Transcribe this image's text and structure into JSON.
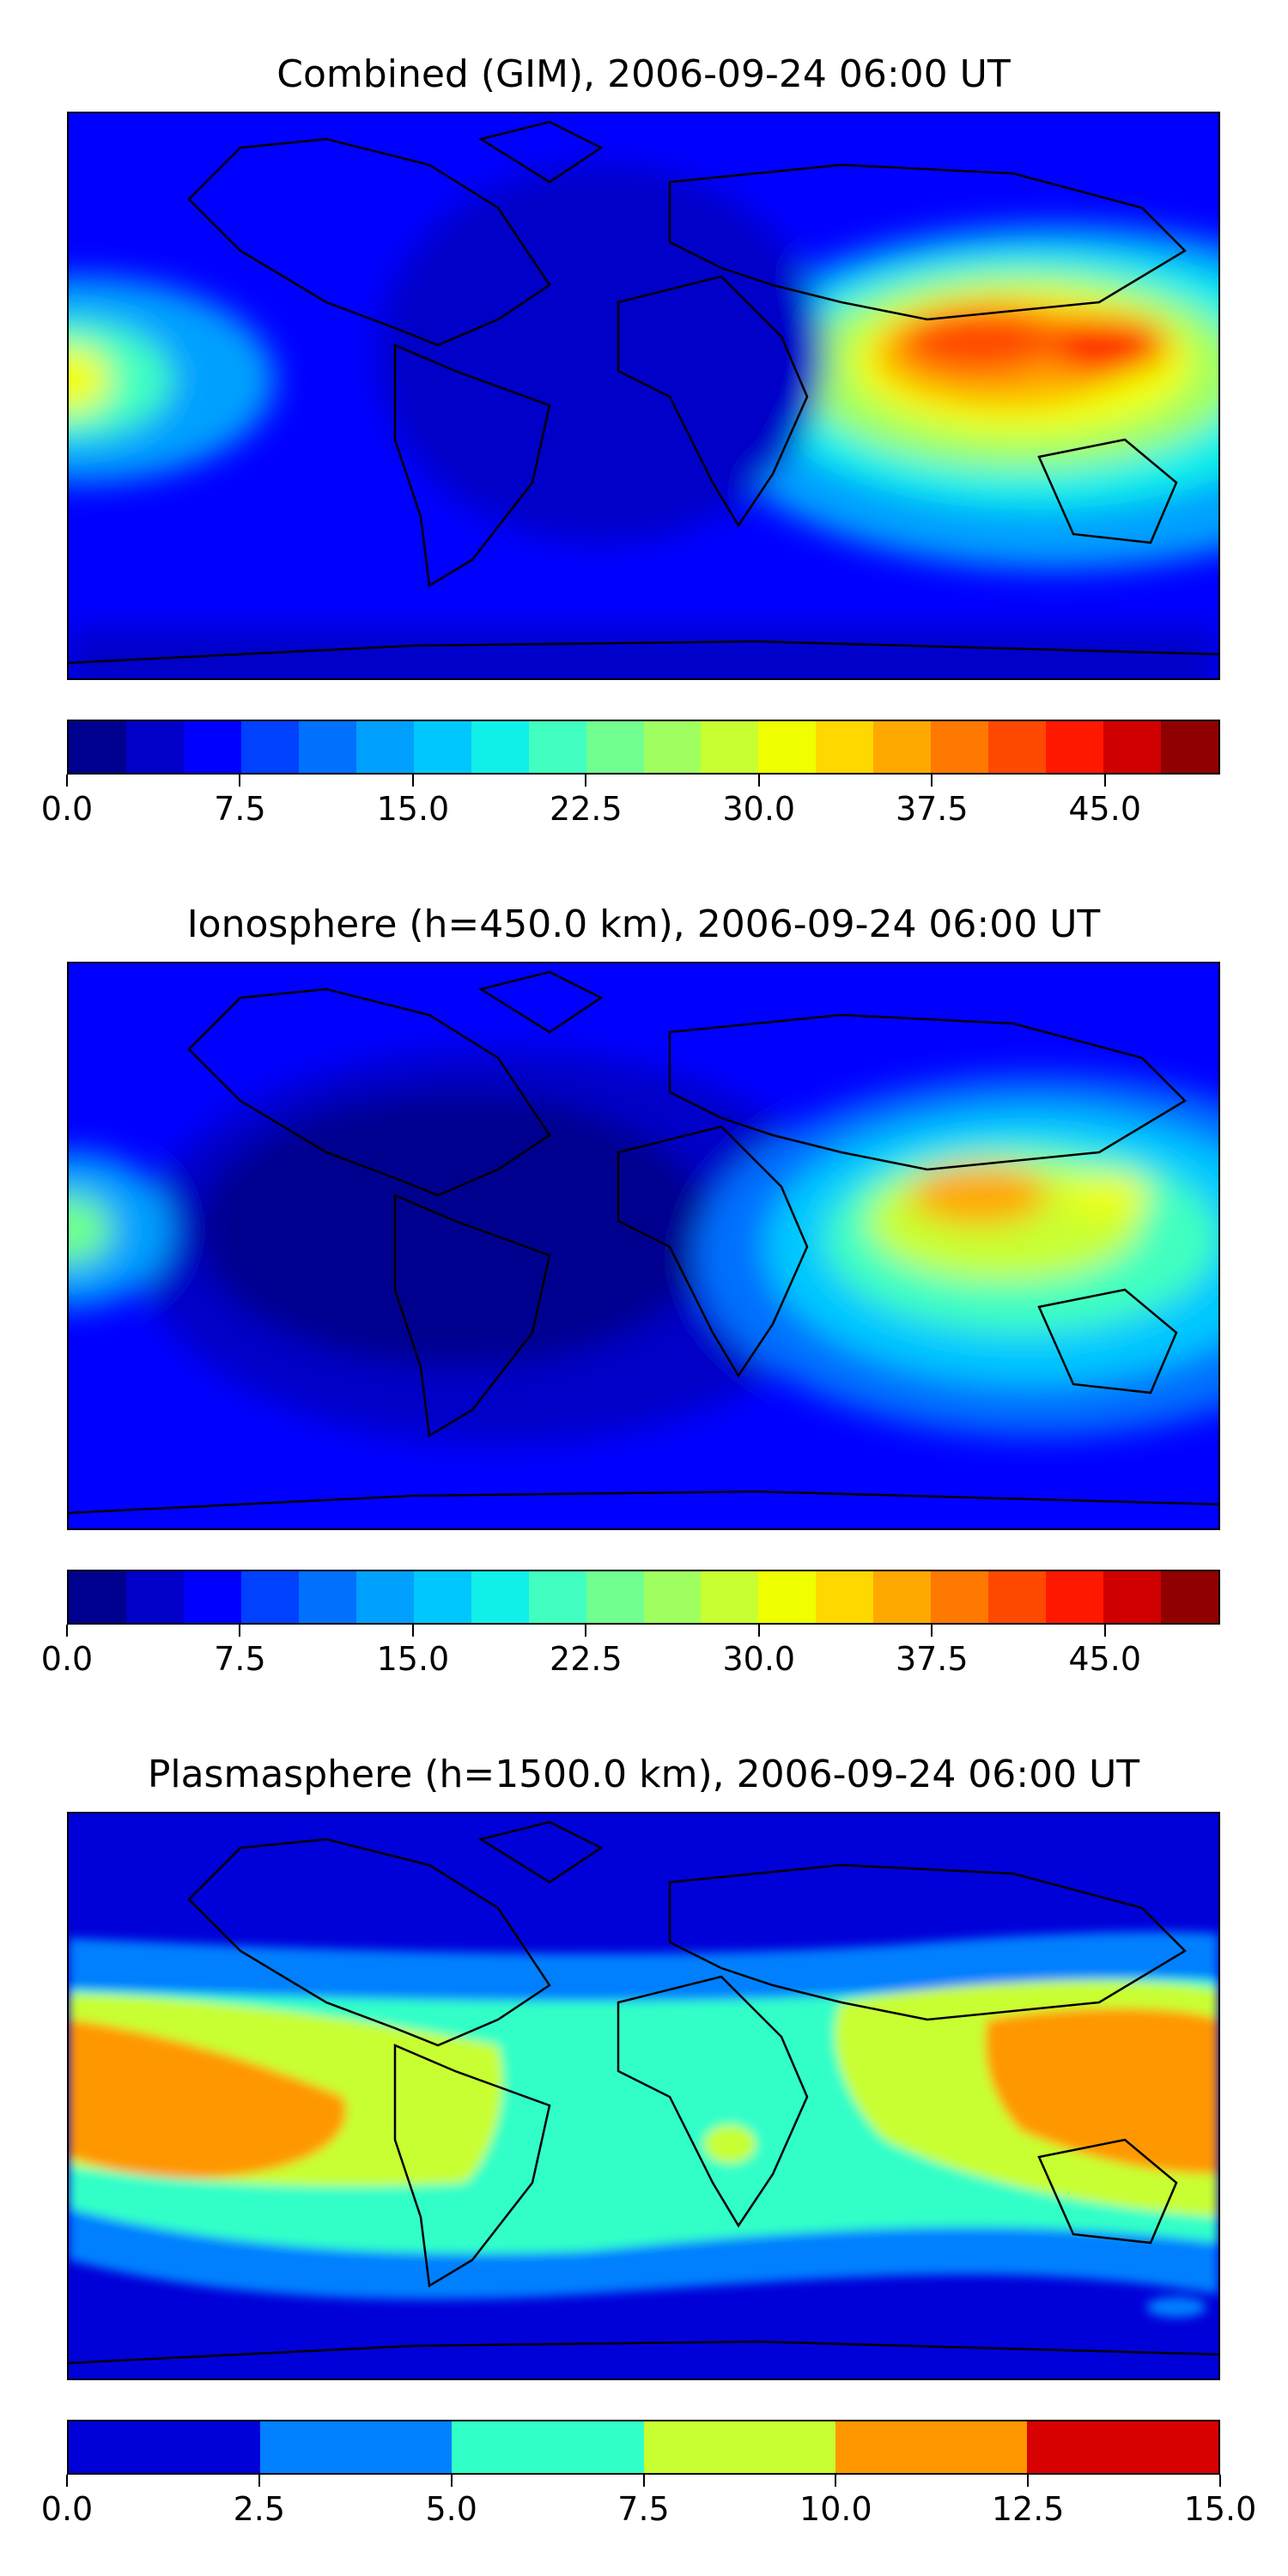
{
  "panels": [
    {
      "title": "Combined (GIM), 2006-09-24 06:00 UT",
      "colorbar": {
        "levels": [
          0,
          2.5,
          5,
          7.5,
          10,
          12.5,
          15,
          17.5,
          20,
          22.5,
          25,
          27.5,
          30,
          32.5,
          35,
          37.5,
          40,
          42.5,
          45,
          47.5,
          50
        ],
        "colors": [
          "#00008f",
          "#0000c8",
          "#0000ff",
          "#0040ff",
          "#0070ff",
          "#00a0ff",
          "#00c8ff",
          "#10f0e8",
          "#40ffc0",
          "#70ff90",
          "#a0ff60",
          "#c8ff30",
          "#f0ff00",
          "#ffd800",
          "#ffa800",
          "#ff7800",
          "#ff4800",
          "#ff1800",
          "#d00000",
          "#900000"
        ],
        "tick_labels": [
          "0.0",
          "7.5",
          "15.0",
          "22.5",
          "30.0",
          "37.5",
          "45.0"
        ],
        "tick_values": [
          0,
          7.5,
          15,
          22.5,
          30,
          37.5,
          45
        ],
        "vmin": 0,
        "vmax": 50
      }
    },
    {
      "title": "Ionosphere  (h=450.0 km), 2006-09-24 06:00 UT",
      "colorbar": {
        "levels": [
          0,
          2.5,
          5,
          7.5,
          10,
          12.5,
          15,
          17.5,
          20,
          22.5,
          25,
          27.5,
          30,
          32.5,
          35,
          37.5,
          40,
          42.5,
          45,
          47.5,
          50
        ],
        "colors": [
          "#00008f",
          "#0000c8",
          "#0000ff",
          "#0040ff",
          "#0070ff",
          "#00a0ff",
          "#00c8ff",
          "#10f0e8",
          "#40ffc0",
          "#70ff90",
          "#a0ff60",
          "#c8ff30",
          "#f0ff00",
          "#ffd800",
          "#ffa800",
          "#ff7800",
          "#ff4800",
          "#ff1800",
          "#d00000",
          "#900000"
        ],
        "tick_labels": [
          "0.0",
          "7.5",
          "15.0",
          "22.5",
          "30.0",
          "37.5",
          "45.0"
        ],
        "tick_values": [
          0,
          7.5,
          15,
          22.5,
          30,
          37.5,
          45
        ],
        "vmin": 0,
        "vmax": 50
      }
    },
    {
      "title": "Plasmasphere (h=1500.0 km), 2006-09-24 06:00 UT",
      "colorbar": {
        "levels": [
          0,
          2.5,
          5,
          7.5,
          10,
          12.5,
          15
        ],
        "colors": [
          "#0000d8",
          "#0080ff",
          "#30ffc8",
          "#c8ff30",
          "#ff9800",
          "#d80000"
        ],
        "tick_labels": [
          "0.0",
          "2.5",
          "5.0",
          "7.5",
          "10.0",
          "12.5",
          "15.0"
        ],
        "tick_values": [
          0,
          2.5,
          5,
          7.5,
          10,
          12.5,
          15
        ],
        "vmin": 0,
        "vmax": 15
      }
    }
  ]
}
